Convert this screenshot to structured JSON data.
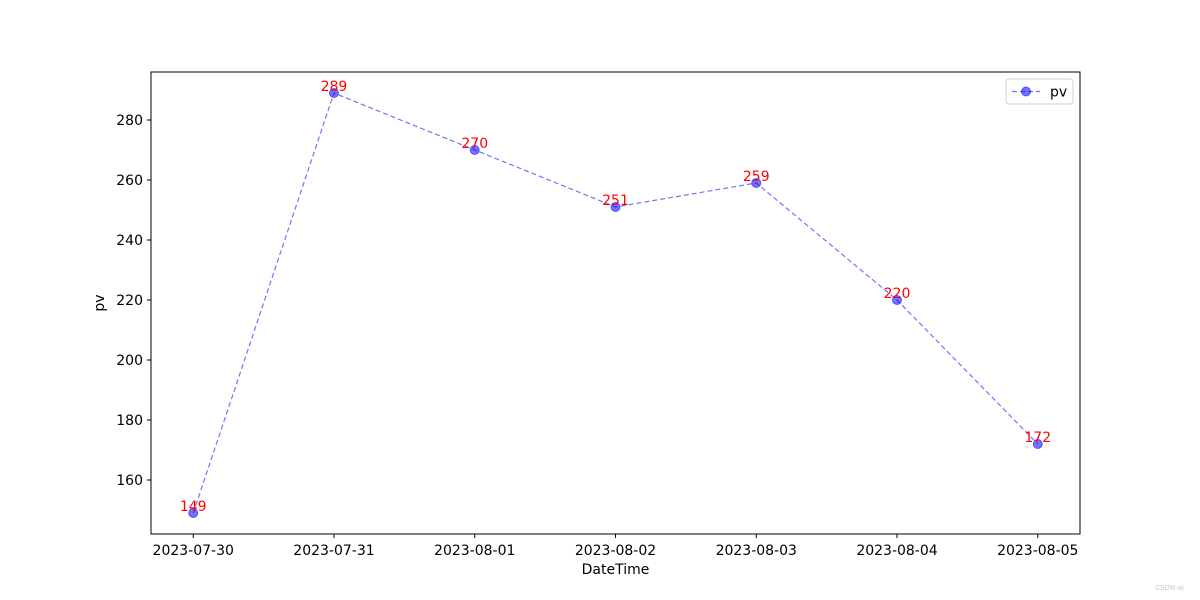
{
  "chart_data": {
    "type": "line",
    "title": "",
    "xlabel": "DateTime",
    "ylabel": "pv",
    "categories": [
      "2023-07-30",
      "2023-07-31",
      "2023-08-01",
      "2023-08-02",
      "2023-08-03",
      "2023-08-04",
      "2023-08-05"
    ],
    "series": [
      {
        "name": "pv",
        "values": [
          149,
          289,
          270,
          251,
          259,
          220,
          172
        ],
        "color": "#0000ff",
        "line_style": "dashed",
        "marker": "circle"
      }
    ],
    "data_labels": [
      "149",
      "289",
      "270",
      "251",
      "259",
      "220",
      "172"
    ],
    "data_label_color": "#ff0000",
    "ylim": [
      142,
      296
    ],
    "yticks": [
      160,
      180,
      200,
      220,
      240,
      260,
      280
    ],
    "grid": false,
    "legend": "top-right"
  },
  "watermark": "CSDN-ai"
}
